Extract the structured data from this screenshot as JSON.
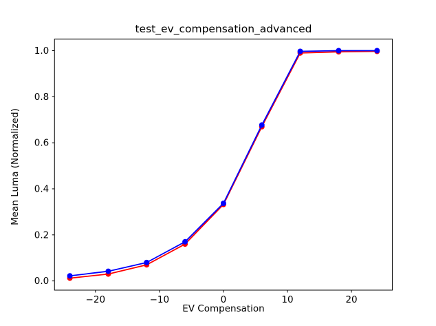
{
  "figure": {
    "background": "#ffffff",
    "frame_color": "#000000"
  },
  "chart_data": {
    "type": "line",
    "title": "test_ev_compensation_advanced",
    "xlabel": "EV Compensation",
    "ylabel": "Mean Luma (Normalized)",
    "x": [
      -24,
      -18,
      -12,
      -6,
      0,
      6,
      12,
      18,
      24
    ],
    "series": [
      {
        "name": "red-series",
        "color": "#ff0000",
        "marker": "circle",
        "values": [
          0.012,
          0.03,
          0.07,
          0.16,
          0.332,
          0.67,
          0.99,
          0.995,
          0.997
        ]
      },
      {
        "name": "blue-series",
        "color": "#0000ff",
        "marker": "circle",
        "values": [
          0.022,
          0.042,
          0.08,
          0.17,
          0.337,
          0.677,
          0.997,
          1.0,
          1.0
        ]
      }
    ],
    "xlim": [
      -26.4,
      26.4
    ],
    "ylim": [
      -0.04,
      1.05
    ],
    "xticks": [
      -20,
      -10,
      0,
      10,
      20
    ],
    "xtick_labels": [
      "−20",
      "−10",
      "0",
      "10",
      "20"
    ],
    "yticks": [
      0.0,
      0.2,
      0.4,
      0.6,
      0.8,
      1.0
    ],
    "ytick_labels": [
      "0.0",
      "0.2",
      "0.4",
      "0.6",
      "0.8",
      "1.0"
    ],
    "grid": false,
    "legend": null
  }
}
